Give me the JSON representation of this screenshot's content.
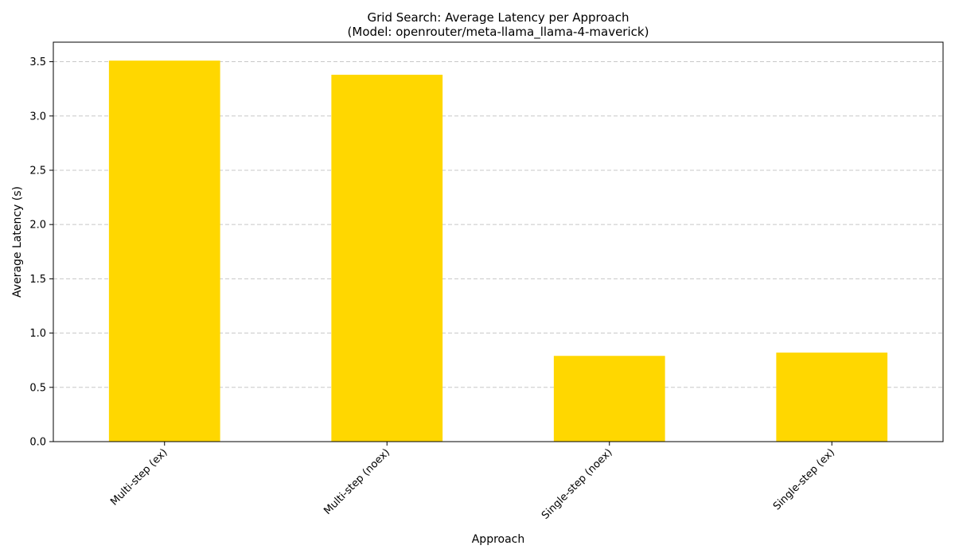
{
  "chart_data": {
    "type": "bar",
    "title_line1": "Grid Search: Average Latency per Approach",
    "title_line2": "(Model: openrouter/meta-llama_llama-4-maverick)",
    "xlabel": "Approach",
    "ylabel": "Average Latency (s)",
    "categories": [
      "Multi-step (ex)",
      "Multi-step (noex)",
      "Single-step (noex)",
      "Single-step (ex)"
    ],
    "values": [
      3.51,
      3.38,
      0.79,
      0.82
    ],
    "ylim": [
      0,
      3.68
    ],
    "yticks": [
      0.0,
      0.5,
      1.0,
      1.5,
      2.0,
      2.5,
      3.0,
      3.5
    ],
    "ytick_labels": [
      "0.0",
      "0.5",
      "1.0",
      "1.5",
      "2.0",
      "2.5",
      "3.0",
      "3.5"
    ],
    "bar_color": "#FFD700",
    "grid": "y-dashed",
    "legend": "none"
  }
}
